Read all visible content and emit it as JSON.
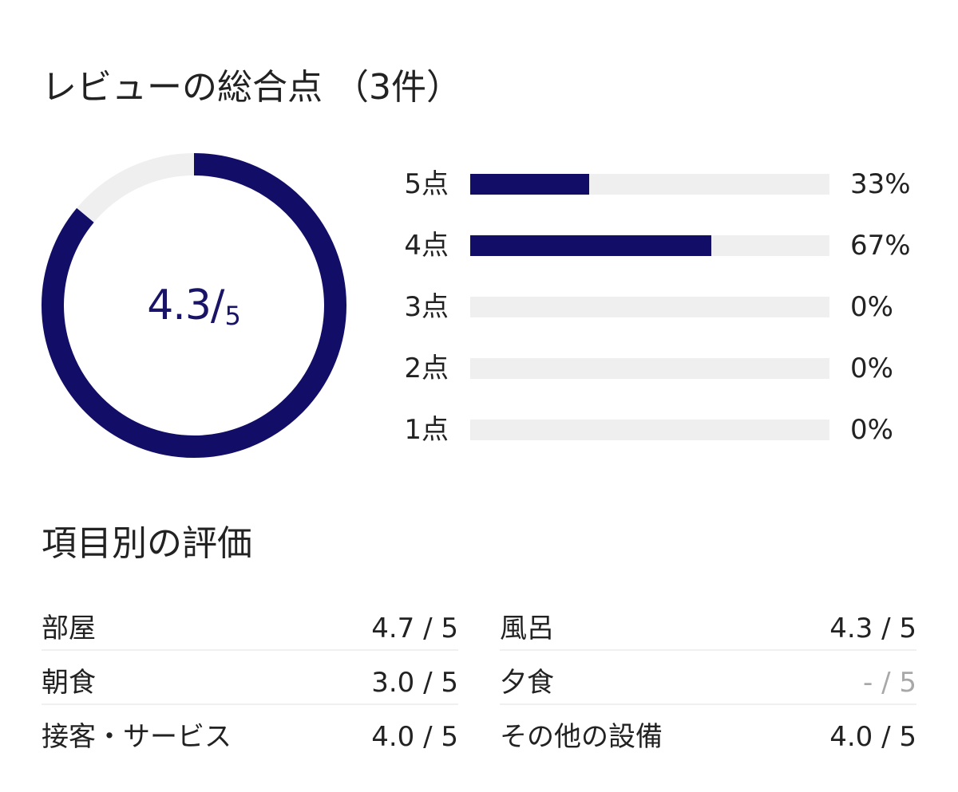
{
  "summary": {
    "title": "レビューの総合点 （3件）",
    "score": "4.3",
    "separator": "/",
    "max": "5",
    "rating_fraction": 0.86,
    "colors": {
      "accent": "#120e68",
      "track": "#efefef",
      "score_text": "#1a1466"
    }
  },
  "distribution": [
    {
      "label": "5点",
      "percent_text": "33%",
      "percent": 33
    },
    {
      "label": "4点",
      "percent_text": "67%",
      "percent": 67
    },
    {
      "label": "3点",
      "percent_text": "0%",
      "percent": 0
    },
    {
      "label": "2点",
      "percent_text": "0%",
      "percent": 0
    },
    {
      "label": "1点",
      "percent_text": "0%",
      "percent": 0
    }
  ],
  "categories": {
    "title": "項目別の評価",
    "left": [
      {
        "name": "部屋",
        "score": "4.7 / 5"
      },
      {
        "name": "朝食",
        "score": "3.0 / 5"
      },
      {
        "name": "接客・サービス",
        "score": "4.0 / 5"
      }
    ],
    "right": [
      {
        "name": "風呂",
        "score": "4.3 / 5"
      },
      {
        "name": "夕食",
        "score": "- / 5",
        "muted": true
      },
      {
        "name": "その他の設備",
        "score": "4.0 / 5"
      }
    ]
  }
}
